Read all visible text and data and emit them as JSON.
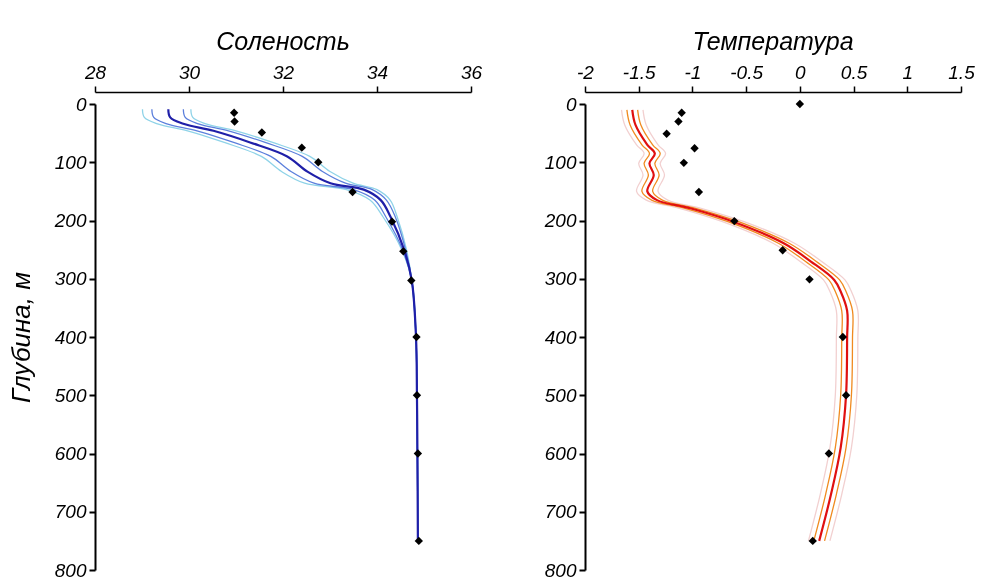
{
  "chart_data": [
    {
      "type": "line",
      "title": "Соленость",
      "ylabel": "Глубина, м",
      "xlim": [
        28,
        36
      ],
      "xticks": [
        28,
        30,
        32,
        34,
        36
      ],
      "ylim": [
        800,
        0
      ],
      "yticks": [
        0,
        100,
        200,
        300,
        400,
        500,
        600,
        700,
        800
      ],
      "series": [
        {
          "color": "#8fd3e8",
          "x": [
            29.01,
            29.05,
            29.33,
            29.97,
            30.75,
            31.54,
            31.97,
            32.46,
            33.35,
            33.85,
            34.13,
            34.53,
            34.74,
            34.83,
            34.85,
            34.86,
            34.87
          ],
          "values": [
            9,
            23,
            34,
            46,
            66,
            90,
            116,
            136,
            147,
            165,
            194,
            251,
            303,
            400,
            500,
            600,
            750
          ]
        },
        {
          "color": "#5b7fdc",
          "x": [
            29.21,
            29.25,
            29.53,
            30.17,
            30.95,
            31.74,
            32.17,
            32.66,
            33.5,
            33.95,
            34.19,
            34.55,
            34.74,
            34.83,
            34.85,
            34.86,
            34.87
          ],
          "values": [
            9,
            23,
            34,
            46,
            66,
            90,
            116,
            136,
            147,
            165,
            194,
            251,
            303,
            400,
            500,
            600,
            750
          ]
        },
        {
          "color": "#8fd3e8",
          "x": [
            30.04,
            30.08,
            30.36,
            31.0,
            31.78,
            32.57,
            33.0,
            33.49,
            34.0,
            34.28,
            34.43,
            34.63,
            34.74,
            34.83,
            34.85,
            34.86,
            34.87
          ],
          "values": [
            9,
            23,
            34,
            46,
            66,
            90,
            116,
            136,
            147,
            165,
            194,
            251,
            303,
            400,
            500,
            600,
            750
          ]
        },
        {
          "color": "#5b7fdc",
          "x": [
            29.88,
            29.92,
            30.2,
            30.84,
            31.62,
            32.41,
            32.84,
            33.33,
            33.9,
            34.2,
            34.39,
            34.61,
            34.74,
            34.83,
            34.85,
            34.86,
            34.87
          ],
          "values": [
            9,
            23,
            34,
            46,
            66,
            90,
            116,
            136,
            147,
            165,
            194,
            251,
            303,
            400,
            500,
            600,
            750
          ]
        },
        {
          "color": "#1f1fa8",
          "x": [
            29.56,
            29.6,
            29.88,
            30.52,
            31.3,
            32.09,
            32.52,
            33.01,
            33.72,
            34.08,
            34.29,
            34.58,
            34.74,
            34.83,
            34.85,
            34.86,
            34.87
          ],
          "values": [
            9,
            23,
            34,
            46,
            66,
            90,
            116,
            136,
            147,
            165,
            194,
            251,
            303,
            400,
            500,
            600,
            750
          ]
        },
        {
          "type": "scatter",
          "marker": "diamond",
          "color": "#000000",
          "x": [
            30.96,
            30.97,
            31.55,
            32.4,
            32.75,
            33.48,
            34.32,
            34.56,
            34.73,
            34.84,
            34.85,
            34.87,
            34.89
          ],
          "values": [
            15,
            30,
            49,
            75,
            100,
            151,
            202,
            253,
            303,
            400,
            500,
            600,
            750
          ]
        }
      ]
    },
    {
      "type": "line",
      "title": "Температура",
      "xlim": [
        -2,
        1.5
      ],
      "xticks": [
        -2,
        -1.5,
        -1,
        -0.5,
        0,
        0.5,
        1,
        1.5
      ],
      "ylim": [
        800,
        0
      ],
      "yticks": [
        0,
        100,
        200,
        300,
        400,
        500,
        600,
        700,
        800
      ],
      "series": [
        {
          "color": "#f2d0d0",
          "x": [
            -1.66,
            -1.63,
            -1.52,
            -1.45,
            -1.5,
            -1.46,
            -1.52,
            -1.43,
            -1.12,
            -0.72,
            -0.25,
            0.0,
            0.22,
            0.28,
            0.34,
            0.34,
            0.33,
            0.28,
            0.19,
            0.08
          ],
          "values": [
            10,
            36,
            70,
            85,
            102,
            122,
            150,
            165,
            179,
            202,
            239,
            270,
            302,
            322,
            355,
            401,
            500,
            590,
            670,
            750
          ]
        },
        {
          "color": "#f2d0d0",
          "x": [
            -1.46,
            -1.43,
            -1.32,
            -1.25,
            -1.3,
            -1.26,
            -1.32,
            -1.23,
            -0.92,
            -0.52,
            -0.05,
            0.2,
            0.42,
            0.48,
            0.54,
            0.54,
            0.53,
            0.48,
            0.39,
            0.28
          ],
          "values": [
            10,
            36,
            70,
            85,
            102,
            122,
            150,
            165,
            179,
            202,
            239,
            270,
            302,
            322,
            355,
            401,
            500,
            590,
            670,
            750
          ]
        },
        {
          "color": "#f08a20",
          "x": [
            -1.61,
            -1.58,
            -1.47,
            -1.4,
            -1.45,
            -1.41,
            -1.47,
            -1.38,
            -1.07,
            -0.67,
            -0.2,
            0.05,
            0.27,
            0.33,
            0.39,
            0.39,
            0.38,
            0.33,
            0.24,
            0.13
          ],
          "values": [
            10,
            36,
            70,
            85,
            102,
            122,
            150,
            165,
            179,
            202,
            239,
            270,
            302,
            322,
            355,
            401,
            500,
            590,
            670,
            750
          ]
        },
        {
          "color": "#f08a20",
          "x": [
            -1.51,
            -1.48,
            -1.37,
            -1.3,
            -1.35,
            -1.31,
            -1.37,
            -1.28,
            -0.97,
            -0.57,
            -0.1,
            0.15,
            0.37,
            0.43,
            0.49,
            0.49,
            0.48,
            0.43,
            0.34,
            0.23
          ],
          "values": [
            10,
            36,
            70,
            85,
            102,
            122,
            150,
            165,
            179,
            202,
            239,
            270,
            302,
            322,
            355,
            401,
            500,
            590,
            670,
            750
          ]
        },
        {
          "color": "#e01010",
          "x": [
            -1.56,
            -1.53,
            -1.42,
            -1.35,
            -1.4,
            -1.36,
            -1.42,
            -1.33,
            -1.02,
            -0.62,
            -0.15,
            0.1,
            0.32,
            0.38,
            0.44,
            0.44,
            0.43,
            0.38,
            0.29,
            0.18
          ],
          "values": [
            10,
            36,
            70,
            85,
            102,
            122,
            150,
            165,
            179,
            202,
            239,
            270,
            302,
            322,
            355,
            401,
            500,
            590,
            670,
            750
          ]
        },
        {
          "type": "scatter",
          "marker": "diamond",
          "color": "#000000",
          "x": [
            0.0,
            -1.1,
            -1.13,
            -1.24,
            -0.98,
            -1.08,
            -0.94,
            -0.61,
            -0.16,
            0.09,
            0.4,
            0.43,
            0.27,
            0.12
          ],
          "values": [
            0,
            15,
            30,
            51,
            76,
            101,
            151,
            201,
            251,
            301,
            400,
            500,
            600,
            750
          ]
        }
      ]
    }
  ]
}
